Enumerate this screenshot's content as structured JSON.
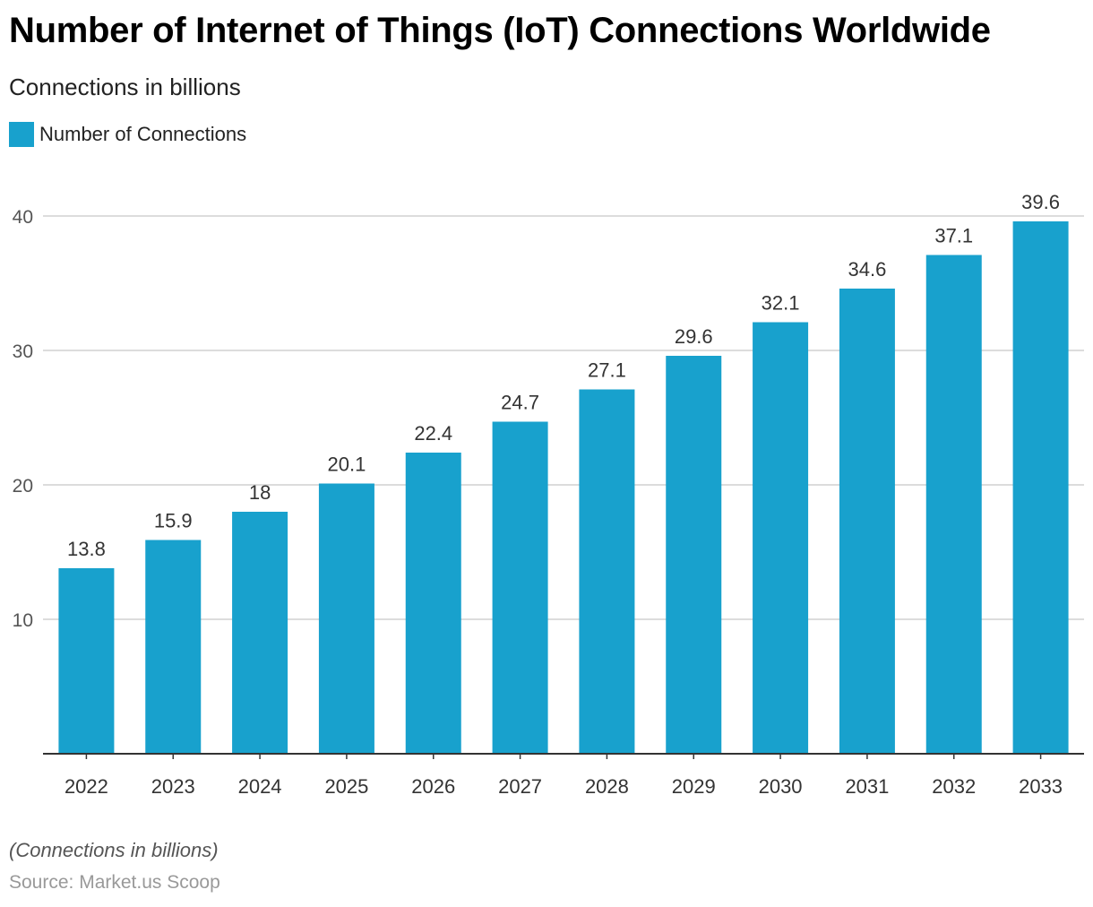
{
  "title": "Number of Internet of Things (IoT) Connections Worldwide",
  "subtitle": "Connections in billions",
  "note": "(Connections in billions)",
  "source": "Source: Market.us Scoop",
  "chart_data": {
    "type": "bar",
    "title": "Number of Internet of Things (IoT) Connections Worldwide",
    "subtitle": "Connections in billions",
    "xlabel": "",
    "ylabel": "",
    "categories": [
      "2022",
      "2023",
      "2024",
      "2025",
      "2026",
      "2027",
      "2028",
      "2029",
      "2030",
      "2031",
      "2032",
      "2033"
    ],
    "series": [
      {
        "name": "Number of Connections",
        "values": [
          13.8,
          15.9,
          18,
          20.1,
          22.4,
          24.7,
          27.1,
          29.6,
          32.1,
          34.6,
          37.1,
          39.6
        ],
        "color": "#18a1cd"
      }
    ],
    "ylim": [
      0,
      40
    ],
    "yticks": [
      10,
      20,
      30,
      40
    ],
    "grid": true,
    "legend": "top-left",
    "data_labels": true
  }
}
